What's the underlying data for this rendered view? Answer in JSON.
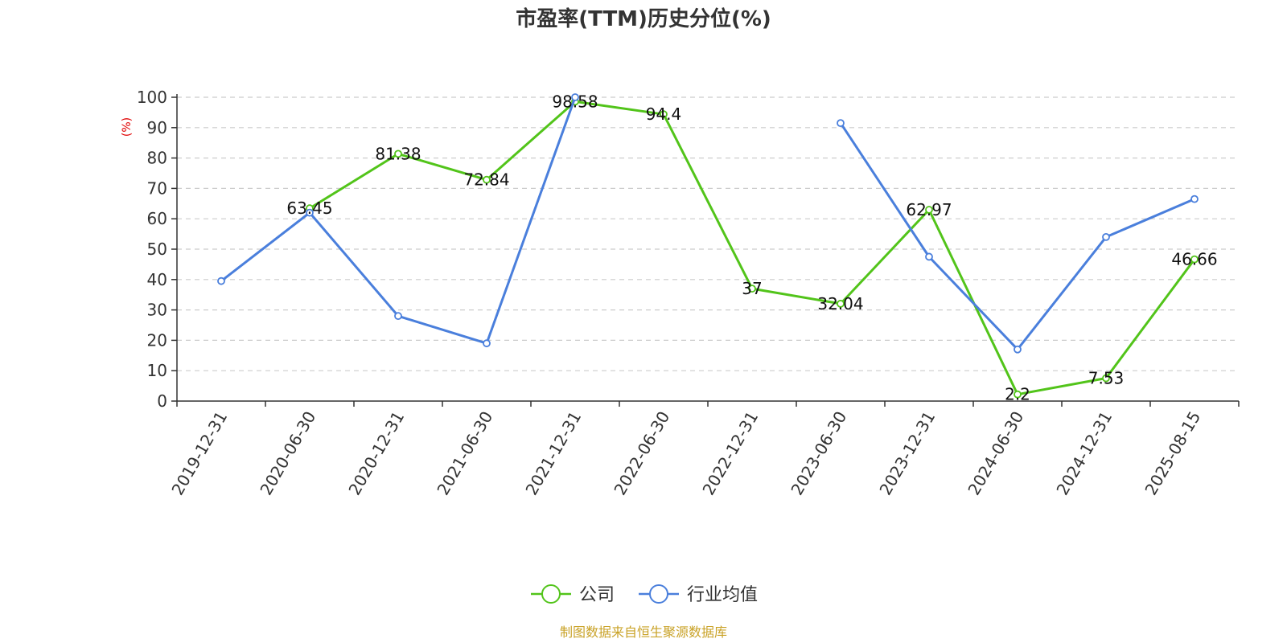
{
  "chart_data": {
    "type": "line",
    "title": "市盈率(TTM)历史分位(%)",
    "ylabel": "(%)",
    "ylim": [
      0,
      100
    ],
    "yticks": [
      0,
      10,
      20,
      30,
      40,
      50,
      60,
      70,
      80,
      90,
      100
    ],
    "grid": true,
    "legend_position": "bottom",
    "categories": [
      "2019-12-31",
      "2020-06-30",
      "2020-12-31",
      "2021-06-30",
      "2021-12-31",
      "2022-06-30",
      "2022-12-31",
      "2023-06-30",
      "2023-12-31",
      "2024-06-30",
      "2024-12-31",
      "2025-08-15"
    ],
    "series": [
      {
        "name": "公司",
        "color": "#52c41a",
        "values": [
          null,
          63.45,
          81.38,
          72.84,
          98.58,
          94.4,
          37,
          32.04,
          62.97,
          2.2,
          7.53,
          46.66
        ],
        "show_labels": true
      },
      {
        "name": "行业均值",
        "color": "#4a7fdc",
        "values": [
          39.5,
          62,
          28,
          19,
          100,
          null,
          null,
          91.5,
          47.5,
          17,
          54,
          66.5
        ],
        "show_labels": false
      }
    ],
    "source": "制图数据来自恒生聚源数据库"
  }
}
